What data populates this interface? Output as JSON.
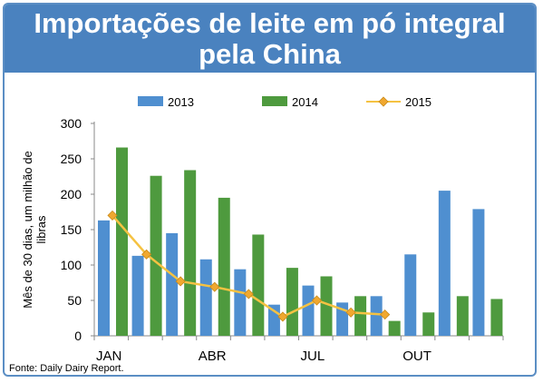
{
  "title_line1": "Importações de leite em pó integral",
  "title_line2": "pela China",
  "source": "Fonte: Daily Dairy Report.",
  "colors": {
    "title_bg": "#4a82bf",
    "s2013": "#4f8fd0",
    "s2014": "#4e9a3e",
    "s2015_line": "#f5c242",
    "s2015_marker": "#f0a830"
  },
  "chart_data": {
    "type": "bar",
    "ylabel": "Mês de 30 dias, um milhão de libras",
    "ylim": [
      0,
      300
    ],
    "yticks": [
      0,
      50,
      100,
      150,
      200,
      250,
      300
    ],
    "months": [
      1,
      2,
      3,
      4,
      5,
      6,
      7,
      8,
      9,
      10,
      11,
      12
    ],
    "xtick_labels": [
      "JAN",
      "",
      "",
      "ABR",
      "",
      "",
      "JUL",
      "",
      "",
      "OUT",
      "",
      ""
    ],
    "legend_position": "top",
    "series": [
      {
        "name": "2013",
        "kind": "bar",
        "values": [
          163,
          113,
          145,
          108,
          94,
          44,
          71,
          47,
          56,
          115,
          205,
          179
        ]
      },
      {
        "name": "2014",
        "kind": "bar",
        "values": [
          266,
          226,
          234,
          195,
          143,
          96,
          84,
          56,
          21,
          33,
          56,
          52
        ]
      },
      {
        "name": "2015",
        "kind": "line",
        "values": [
          170,
          115,
          77,
          69,
          59,
          27,
          50,
          33,
          30,
          null,
          null,
          null
        ]
      }
    ]
  }
}
